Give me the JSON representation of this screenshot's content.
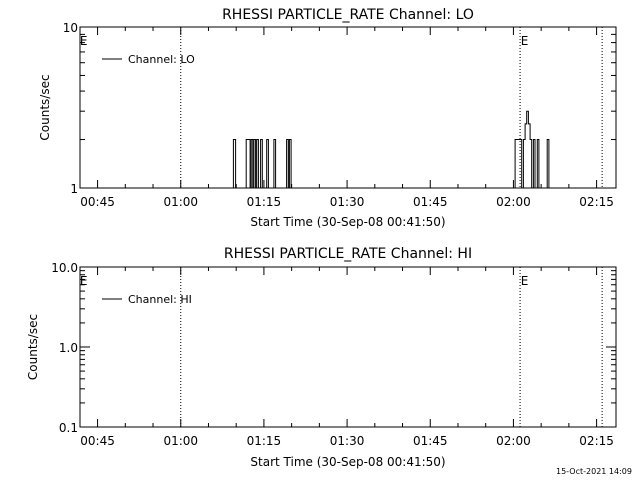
{
  "footer_timestamp": "15-Oct-2021 14:09",
  "chart_data": [
    {
      "type": "line",
      "title": "RHESSI PARTICLE_RATE Channel: LO",
      "xlabel": "Start Time (30-Sep-08 00:41:50)",
      "ylabel": "Counts/sec",
      "y_scale": "log",
      "ylim": [
        1,
        10
      ],
      "y_ticks": [
        "1",
        "10"
      ],
      "x_range_minutes": [
        41.83,
        138.5
      ],
      "x_ticks": [
        {
          "label": "00:45",
          "minute": 45
        },
        {
          "label": "01:00",
          "minute": 60
        },
        {
          "label": "01:15",
          "minute": 75
        },
        {
          "label": "01:30",
          "minute": 90
        },
        {
          "label": "01:45",
          "minute": 105
        },
        {
          "label": "02:00",
          "minute": 120
        },
        {
          "label": "02:15",
          "minute": 135
        }
      ],
      "x_minor_step_minutes": 5,
      "event_lines_minutes": [
        60.0,
        121.2,
        136.0
      ],
      "event_markers": [
        {
          "label": "E",
          "minute": 42.5
        },
        {
          "label": "E",
          "minute": 122.0
        }
      ],
      "legend": {
        "position": "top-left",
        "entries": [
          "Channel: LO"
        ]
      },
      "series": [
        {
          "name": "Channel: LO",
          "values": [
            [
              69.0,
              1
            ],
            [
              69.5,
              2
            ],
            [
              69.9,
              1
            ],
            [
              71.5,
              1
            ],
            [
              71.8,
              2
            ],
            [
              72.2,
              2
            ],
            [
              72.5,
              1
            ],
            [
              72.7,
              2
            ],
            [
              73.0,
              1
            ],
            [
              73.2,
              2
            ],
            [
              73.5,
              1
            ],
            [
              73.7,
              2
            ],
            [
              74.0,
              1
            ],
            [
              74.4,
              2
            ],
            [
              74.7,
              1
            ],
            [
              75.2,
              1
            ],
            [
              75.5,
              2
            ],
            [
              75.8,
              1
            ],
            [
              76.5,
              1
            ],
            [
              76.8,
              2
            ],
            [
              77.1,
              1
            ],
            [
              78.8,
              1
            ],
            [
              79.1,
              2
            ],
            [
              79.4,
              1
            ],
            [
              79.6,
              2
            ],
            [
              79.9,
              1
            ],
            [
              120.0,
              1
            ],
            [
              120.3,
              2
            ],
            [
              121.2,
              2
            ],
            [
              121.5,
              1
            ],
            [
              121.8,
              2
            ],
            [
              122.1,
              2.5
            ],
            [
              122.4,
              3
            ],
            [
              122.7,
              2.5
            ],
            [
              123.0,
              2
            ],
            [
              123.3,
              1
            ],
            [
              123.6,
              2
            ],
            [
              123.9,
              1
            ],
            [
              124.3,
              2
            ],
            [
              124.6,
              1
            ],
            [
              125.8,
              1
            ],
            [
              126.1,
              2
            ],
            [
              126.4,
              1
            ]
          ]
        }
      ]
    },
    {
      "type": "line",
      "title": "RHESSI PARTICLE_RATE Channel: HI",
      "xlabel": "Start Time (30-Sep-08 00:41:50)",
      "ylabel": "Counts/sec",
      "y_scale": "log",
      "ylim": [
        0.1,
        10
      ],
      "y_ticks": [
        "0.1",
        "1.0",
        "10.0"
      ],
      "x_range_minutes": [
        41.83,
        138.5
      ],
      "x_ticks": [
        {
          "label": "00:45",
          "minute": 45
        },
        {
          "label": "01:00",
          "minute": 60
        },
        {
          "label": "01:15",
          "minute": 75
        },
        {
          "label": "01:30",
          "minute": 90
        },
        {
          "label": "01:45",
          "minute": 105
        },
        {
          "label": "02:00",
          "minute": 120
        },
        {
          "label": "02:15",
          "minute": 135
        }
      ],
      "x_minor_step_minutes": 5,
      "event_lines_minutes": [
        60.0,
        121.2,
        136.0
      ],
      "event_markers": [
        {
          "label": "E",
          "minute": 42.5
        },
        {
          "label": "E",
          "minute": 122.0
        }
      ],
      "legend": {
        "position": "top-left",
        "entries": [
          "Channel: HI"
        ]
      },
      "series": [
        {
          "name": "Channel: HI",
          "values": []
        }
      ]
    }
  ]
}
